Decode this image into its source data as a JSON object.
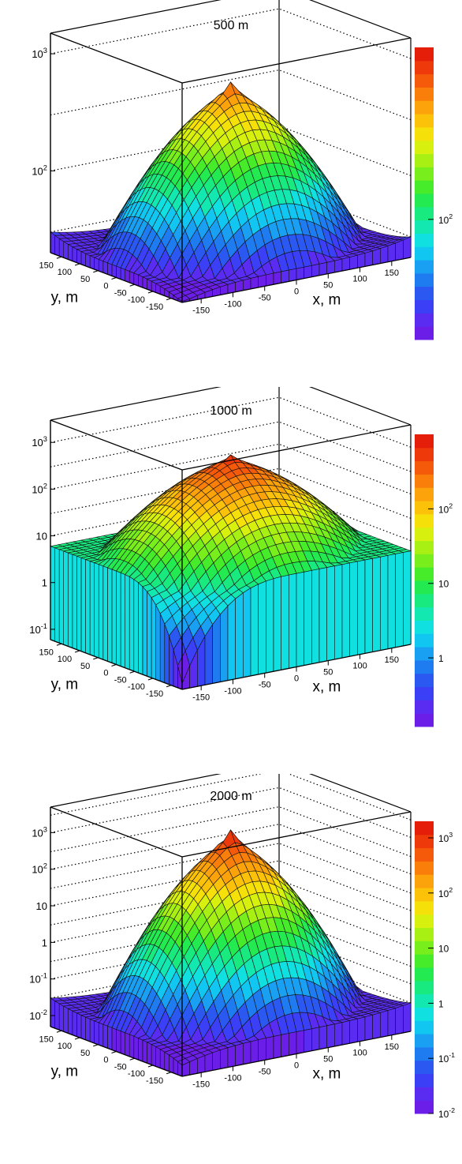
{
  "chart_data": [
    {
      "type": "surface",
      "title": "500 m",
      "xlabel": "x, m",
      "ylabel": "y, m",
      "xticks": [
        "-150",
        "-100",
        "-50",
        "0",
        "50",
        "100",
        "150"
      ],
      "yticks": [
        "150",
        "100",
        "50",
        "0",
        "-50",
        "-100",
        "-150"
      ],
      "zlog": true,
      "zlim": [
        20,
        1500
      ],
      "zticks": [
        "10^2",
        "10^3"
      ],
      "colorbar": {
        "log": true,
        "range": [
          20,
          1000
        ],
        "ticks": [
          "10^2"
        ]
      },
      "grid": true,
      "surface": {
        "peak": 450,
        "edge_min": 25,
        "corner_near": 20,
        "corner_far": 30
      }
    },
    {
      "type": "surface",
      "title": "1000 m",
      "xlabel": "x, m",
      "ylabel": "y, m",
      "xticks": [
        "-150",
        "-100",
        "-50",
        "0",
        "50",
        "100",
        "150"
      ],
      "yticks": [
        "150",
        "100",
        "50",
        "0",
        "-50",
        "-100",
        "-150"
      ],
      "zlog": true,
      "zlim": [
        0.06,
        3000
      ],
      "zticks": [
        "10^-1",
        "1",
        "10",
        "10^2",
        "10^3"
      ],
      "colorbar": {
        "log": true,
        "range": [
          0.12,
          1000
        ],
        "ticks": [
          "1",
          "10",
          "10^2"
        ]
      },
      "grid": true,
      "surface": {
        "peak": 400,
        "edge_min": 6,
        "corner_near": 0.08,
        "corner_far": 6
      }
    },
    {
      "type": "surface",
      "title": "2000 m",
      "xlabel": "x, m",
      "ylabel": "y, m",
      "xticks": [
        "-150",
        "-100",
        "-50",
        "0",
        "50",
        "100",
        "150"
      ],
      "yticks": [
        "150",
        "100",
        "50",
        "0",
        "-50",
        "-100",
        "-150"
      ],
      "zlog": true,
      "zlim": [
        0.005,
        5000
      ],
      "zticks": [
        "10^-2",
        "10^-1",
        "1",
        "10",
        "10^2",
        "10^3"
      ],
      "colorbar": {
        "log": true,
        "range": [
          0.01,
          2000
        ],
        "ticks": [
          "10^-2",
          "10^-1",
          "1",
          "10",
          "10^2",
          "10^3"
        ]
      },
      "grid": true,
      "surface": {
        "peak": 500,
        "edge_min": 0.02,
        "corner_near": 0.01,
        "corner_far": 0.03
      }
    }
  ]
}
